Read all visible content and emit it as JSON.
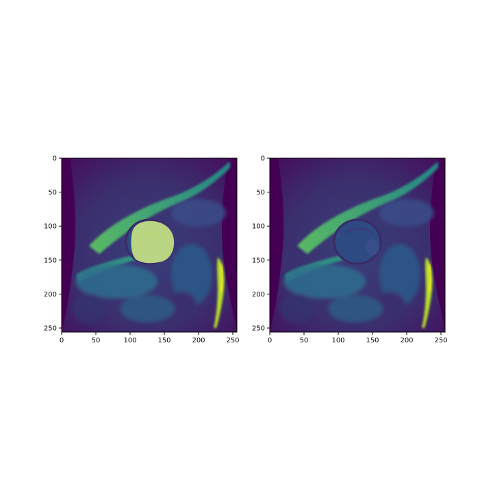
{
  "figure": {
    "panels": [
      {
        "id": "left",
        "overlay": true,
        "overlay_label": "segmentation mask",
        "x_ticks": [
          "0",
          "50",
          "100",
          "150",
          "200",
          "250"
        ],
        "y_ticks": [
          "0",
          "50",
          "100",
          "150",
          "200",
          "250"
        ]
      },
      {
        "id": "right",
        "overlay": false,
        "x_ticks": [
          "0",
          "50",
          "100",
          "150",
          "200",
          "250"
        ],
        "y_ticks": [
          "0",
          "50",
          "100",
          "150",
          "200",
          "250"
        ]
      }
    ],
    "axis_range": {
      "x": [
        0,
        256
      ],
      "y": [
        0,
        256
      ]
    },
    "colors": {
      "background_dark": "#440154",
      "tissue_dark": "#3b2a6a",
      "tissue_mid": "#2f6e8e",
      "tissue_bright": "#2ea985",
      "tissue_hot": "#b7de2a",
      "tissue_max": "#fde725",
      "mask_fill": "#c7e183"
    }
  }
}
